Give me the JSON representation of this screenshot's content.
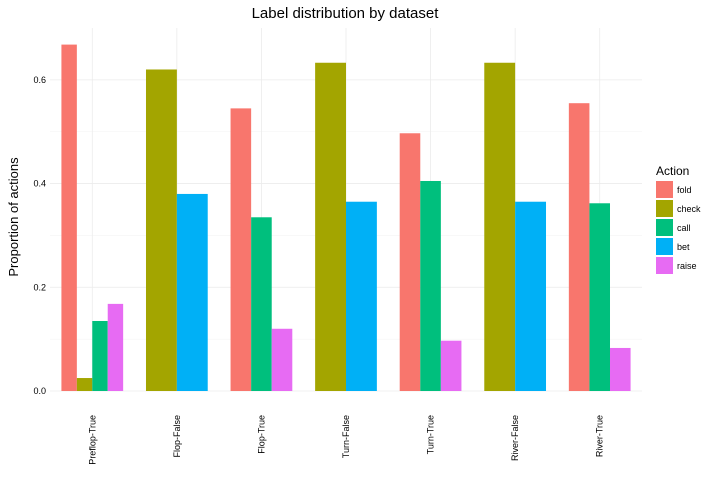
{
  "chart_data": {
    "type": "bar",
    "title": "Label distribution by dataset",
    "xlabel": "",
    "ylabel": "Proportion of actions",
    "ylim": [
      0,
      0.7
    ],
    "yticks": [
      0.0,
      0.2,
      0.4,
      0.6
    ],
    "ytick_labels": [
      "0.0",
      "0.2",
      "0.4",
      "0.6"
    ],
    "grid": true,
    "legend": {
      "title": "Action",
      "position": "right"
    },
    "categories": [
      "Preflop-True",
      "Flop-False",
      "Flop-True",
      "Turn-False",
      "Turn-True",
      "River-False",
      "River-True"
    ],
    "series": [
      {
        "name": "fold",
        "color": "#F8766D",
        "values": [
          0.668,
          null,
          0.545,
          null,
          0.497,
          null,
          0.555
        ]
      },
      {
        "name": "check",
        "color": "#A3A500",
        "values": [
          0.025,
          0.62,
          null,
          0.633,
          null,
          0.633,
          null
        ]
      },
      {
        "name": "call",
        "color": "#00BF7D",
        "values": [
          0.135,
          null,
          0.335,
          null,
          0.405,
          null,
          0.362
        ]
      },
      {
        "name": "bet",
        "color": "#00B0F6",
        "values": [
          null,
          0.38,
          null,
          0.365,
          null,
          0.365,
          null
        ]
      },
      {
        "name": "raise",
        "color": "#E76BF3",
        "values": [
          0.168,
          null,
          0.12,
          null,
          0.097,
          null,
          0.083
        ]
      }
    ]
  }
}
